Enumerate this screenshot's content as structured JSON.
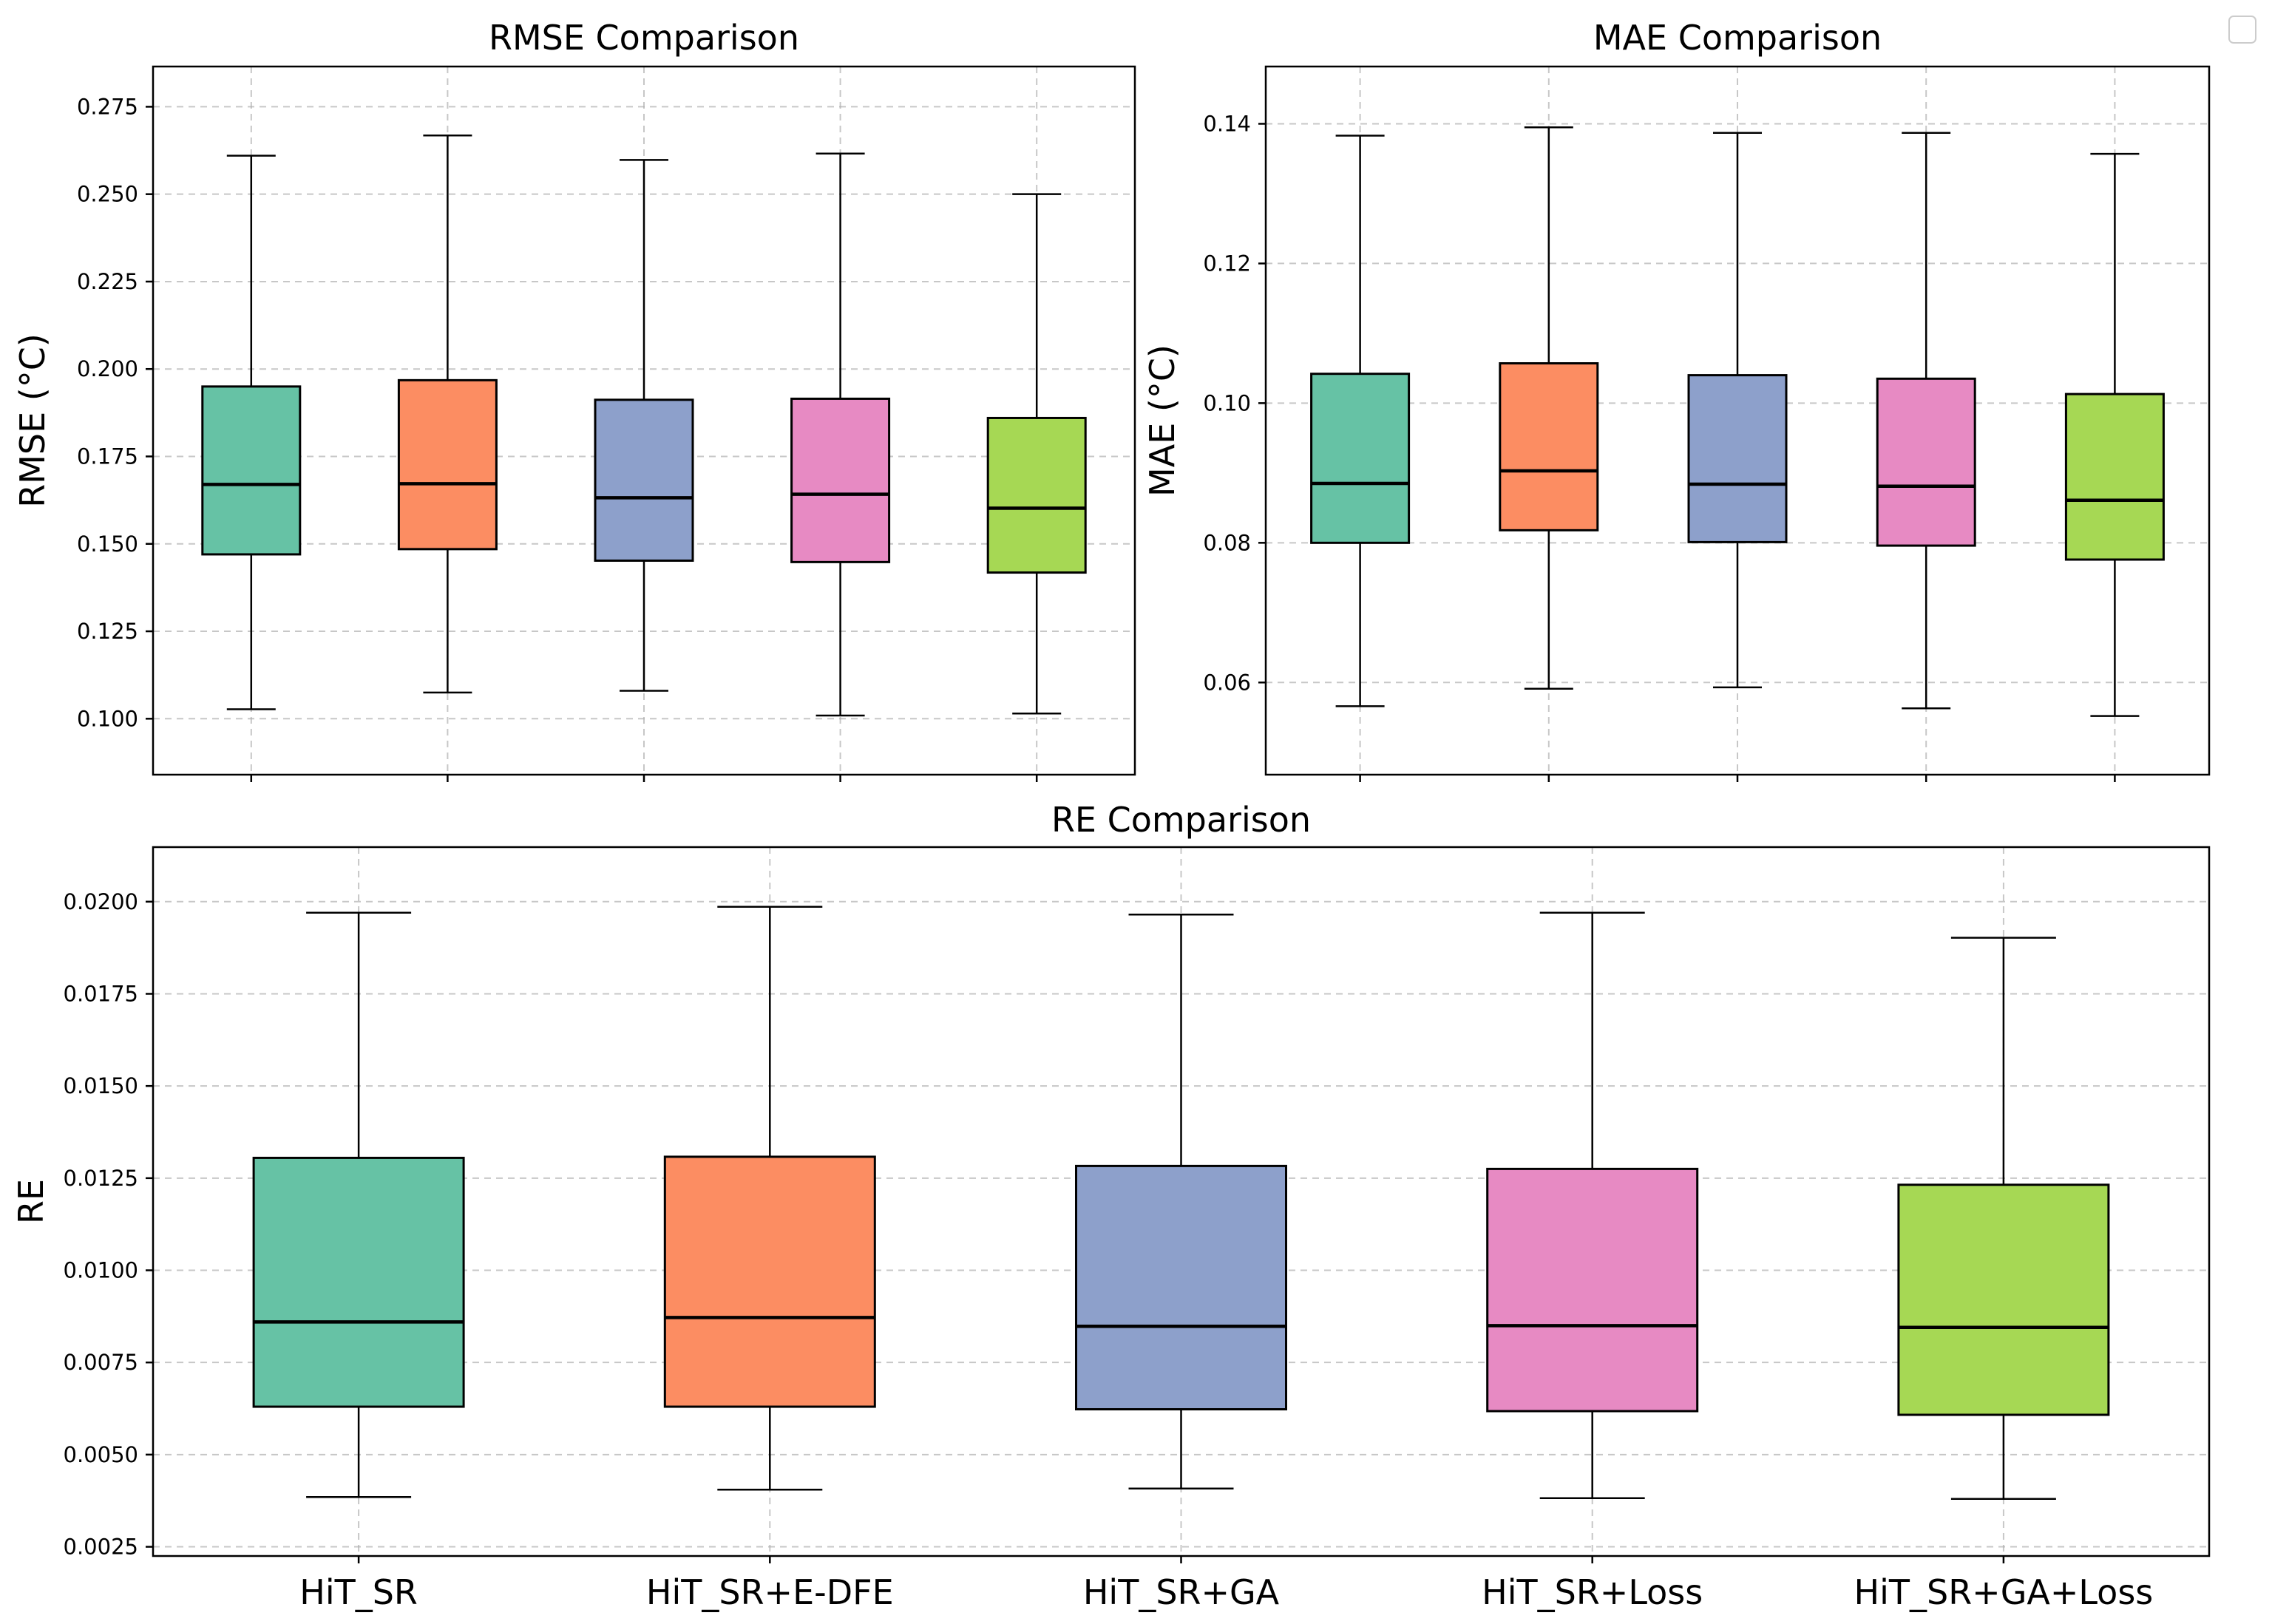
{
  "chart_data": [
    {
      "type": "box",
      "title": "RMSE Comparison",
      "ylabel": "RMSE (°C)",
      "ylim": [
        0.084,
        0.2865
      ],
      "yticks": [
        0.1,
        0.125,
        0.15,
        0.175,
        0.2,
        0.225,
        0.25,
        0.275
      ],
      "ytick_labels": [
        "0.100",
        "0.125",
        "0.150",
        "0.175",
        "0.200",
        "0.225",
        "0.250",
        "0.275"
      ],
      "grid": true,
      "categories": [
        "HiT_SR",
        "HiT_SR+E-DFE",
        "HiT_SR+GA",
        "HiT_SR+Loss",
        "HiT_SR+GA+Loss"
      ],
      "colors": [
        "#66c2a5",
        "#fc8d62",
        "#8da0cb",
        "#e78ac3",
        "#a6d854"
      ],
      "boxes": [
        {
          "whisker_low": 0.1027,
          "q1": 0.147,
          "median": 0.167,
          "q3": 0.195,
          "whisker_high": 0.261
        },
        {
          "whisker_low": 0.1075,
          "q1": 0.1485,
          "median": 0.1672,
          "q3": 0.1968,
          "whisker_high": 0.2668
        },
        {
          "whisker_low": 0.108,
          "q1": 0.1452,
          "median": 0.1632,
          "q3": 0.1912,
          "whisker_high": 0.2598
        },
        {
          "whisker_low": 0.1009,
          "q1": 0.1448,
          "median": 0.1642,
          "q3": 0.1915,
          "whisker_high": 0.2616
        },
        {
          "whisker_low": 0.1015,
          "q1": 0.1418,
          "median": 0.1602,
          "q3": 0.186,
          "whisker_high": 0.25
        }
      ]
    },
    {
      "type": "box",
      "title": "MAE Comparison",
      "ylabel": "MAE (°C)",
      "ylim": [
        0.0468,
        0.1482
      ],
      "yticks": [
        0.06,
        0.08,
        0.1,
        0.12,
        0.14
      ],
      "ytick_labels": [
        "0.06",
        "0.08",
        "0.10",
        "0.12",
        "0.14"
      ],
      "grid": true,
      "categories": [
        "HiT_SR",
        "HiT_SR+E-DFE",
        "HiT_SR+GA",
        "HiT_SR+Loss",
        "HiT_SR+GA+Loss"
      ],
      "colors": [
        "#66c2a5",
        "#fc8d62",
        "#8da0cb",
        "#e78ac3",
        "#a6d854"
      ],
      "boxes": [
        {
          "whisker_low": 0.0566,
          "q1": 0.08,
          "median": 0.0885,
          "q3": 0.1042,
          "whisker_high": 0.1383
        },
        {
          "whisker_low": 0.0591,
          "q1": 0.0818,
          "median": 0.0903,
          "q3": 0.1057,
          "whisker_high": 0.1395
        },
        {
          "whisker_low": 0.0593,
          "q1": 0.0801,
          "median": 0.0884,
          "q3": 0.104,
          "whisker_high": 0.1387
        },
        {
          "whisker_low": 0.0563,
          "q1": 0.0796,
          "median": 0.0881,
          "q3": 0.1035,
          "whisker_high": 0.1387
        },
        {
          "whisker_low": 0.0552,
          "q1": 0.0776,
          "median": 0.0861,
          "q3": 0.1013,
          "whisker_high": 0.1357
        }
      ]
    },
    {
      "type": "box",
      "title": "RE Comparison",
      "ylabel": "RE",
      "ylim": [
        0.00225,
        0.02148
      ],
      "yticks": [
        0.0025,
        0.005,
        0.0075,
        0.01,
        0.0125,
        0.015,
        0.0175,
        0.02
      ],
      "ytick_labels": [
        "0.0025",
        "0.0050",
        "0.0075",
        "0.0100",
        "0.0125",
        "0.0150",
        "0.0175",
        "0.0200"
      ],
      "grid": true,
      "categories": [
        "HiT_SR",
        "HiT_SR+E-DFE",
        "HiT_SR+GA",
        "HiT_SR+Loss",
        "HiT_SR+GA+Loss"
      ],
      "colors": [
        "#66c2a5",
        "#fc8d62",
        "#8da0cb",
        "#e78ac3",
        "#a6d854"
      ],
      "boxes": [
        {
          "whisker_low": 0.00385,
          "q1": 0.0063,
          "median": 0.0086,
          "q3": 0.01305,
          "whisker_high": 0.0197
        },
        {
          "whisker_low": 0.00405,
          "q1": 0.0063,
          "median": 0.00872,
          "q3": 0.01308,
          "whisker_high": 0.01986
        },
        {
          "whisker_low": 0.00408,
          "q1": 0.00623,
          "median": 0.00848,
          "q3": 0.01283,
          "whisker_high": 0.01965
        },
        {
          "whisker_low": 0.00382,
          "q1": 0.00618,
          "median": 0.0085,
          "q3": 0.01275,
          "whisker_high": 0.0197
        },
        {
          "whisker_low": 0.0038,
          "q1": 0.00608,
          "median": 0.00845,
          "q3": 0.01232,
          "whisker_high": 0.01902
        }
      ]
    }
  ]
}
